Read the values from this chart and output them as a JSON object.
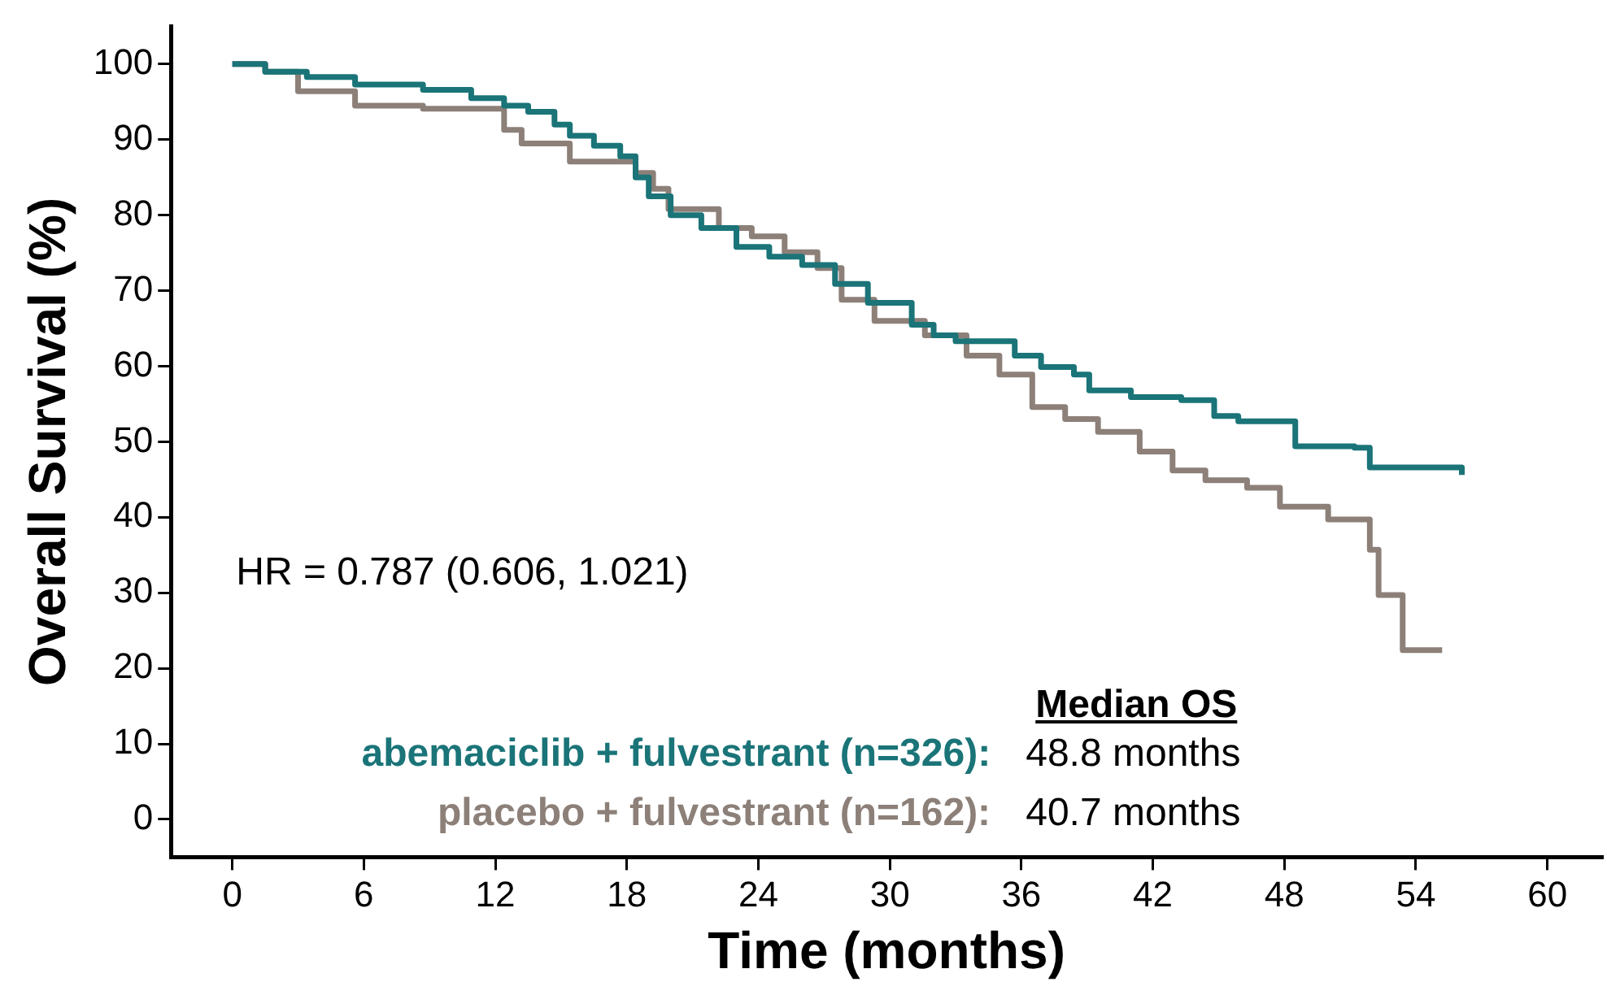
{
  "chart_data": {
    "type": "step",
    "xlabel": "Time (months)",
    "ylabel": "Overall Survival (%)",
    "xlim": [
      -2.8,
      62.5
    ],
    "xticks": [
      0,
      6,
      12,
      18,
      24,
      30,
      36,
      42,
      48,
      54,
      60
    ],
    "ylim": [
      -5,
      105
    ],
    "yticks": [
      0,
      10,
      20,
      30,
      40,
      50,
      60,
      70,
      80,
      90,
      100
    ],
    "grid": false,
    "legend": "bottom",
    "marker": "none",
    "line_style": "solid",
    "legend_title": "Median OS",
    "annotations": [
      "HR = 0.787 (0.606, 1.021)",
      "48.8 months",
      "40.7 months"
    ],
    "series": [
      {
        "name": "abemaciclib + fulvestrant (n=326):",
        "color": "#1a7478",
        "x": [
          0,
          1.5,
          3.4,
          5.6,
          8.7,
          10.9,
          12.4,
          13.5,
          14.7,
          15.4,
          16.5,
          17.7,
          18.4,
          19,
          20,
          21.4,
          23,
          24.5,
          26,
          27.5,
          29,
          31,
          32,
          33,
          35.7,
          36.9,
          38.4,
          39.1,
          41,
          43.3,
          44.8,
          45.9,
          48.5,
          51.2,
          51.9,
          56.1
        ],
        "values": [
          100,
          99,
          98.3,
          97.3,
          96.6,
          95.5,
          94.5,
          93.7,
          92,
          90.5,
          89.2,
          87.8,
          85,
          82.5,
          80,
          78.3,
          75.8,
          74.5,
          73.4,
          70.9,
          68.4,
          65.5,
          64.1,
          63.3,
          61.4,
          59.9,
          58.9,
          56.8,
          55.9,
          55.5,
          53.4,
          52.7,
          49.4,
          49.2,
          46.6,
          45.6
        ]
      },
      {
        "name": "placebo + fulvestrant (n=162):",
        "color": "#8c8079",
        "x": [
          0,
          1.5,
          3,
          5.6,
          8.7,
          12.4,
          13.2,
          15.4,
          18.4,
          19.2,
          19.9,
          22.2,
          23.7,
          25.2,
          26.7,
          27.8,
          29.3,
          31.6,
          33.5,
          35,
          36.5,
          38,
          39.5,
          41.4,
          42.9,
          44.4,
          46.3,
          47.8,
          50,
          51.9,
          52.3,
          53.4,
          55.2
        ],
        "values": [
          100,
          99,
          96.4,
          94.5,
          94.1,
          91.3,
          89.5,
          87.1,
          85.6,
          83.5,
          80.8,
          78.3,
          77.2,
          75.1,
          73,
          68.8,
          66,
          64.1,
          61.4,
          58.9,
          54.6,
          53,
          51.3,
          48.7,
          46.2,
          44.9,
          43.9,
          41.4,
          39.7,
          35.7,
          29.7,
          22.4,
          22.4
        ]
      }
    ]
  }
}
